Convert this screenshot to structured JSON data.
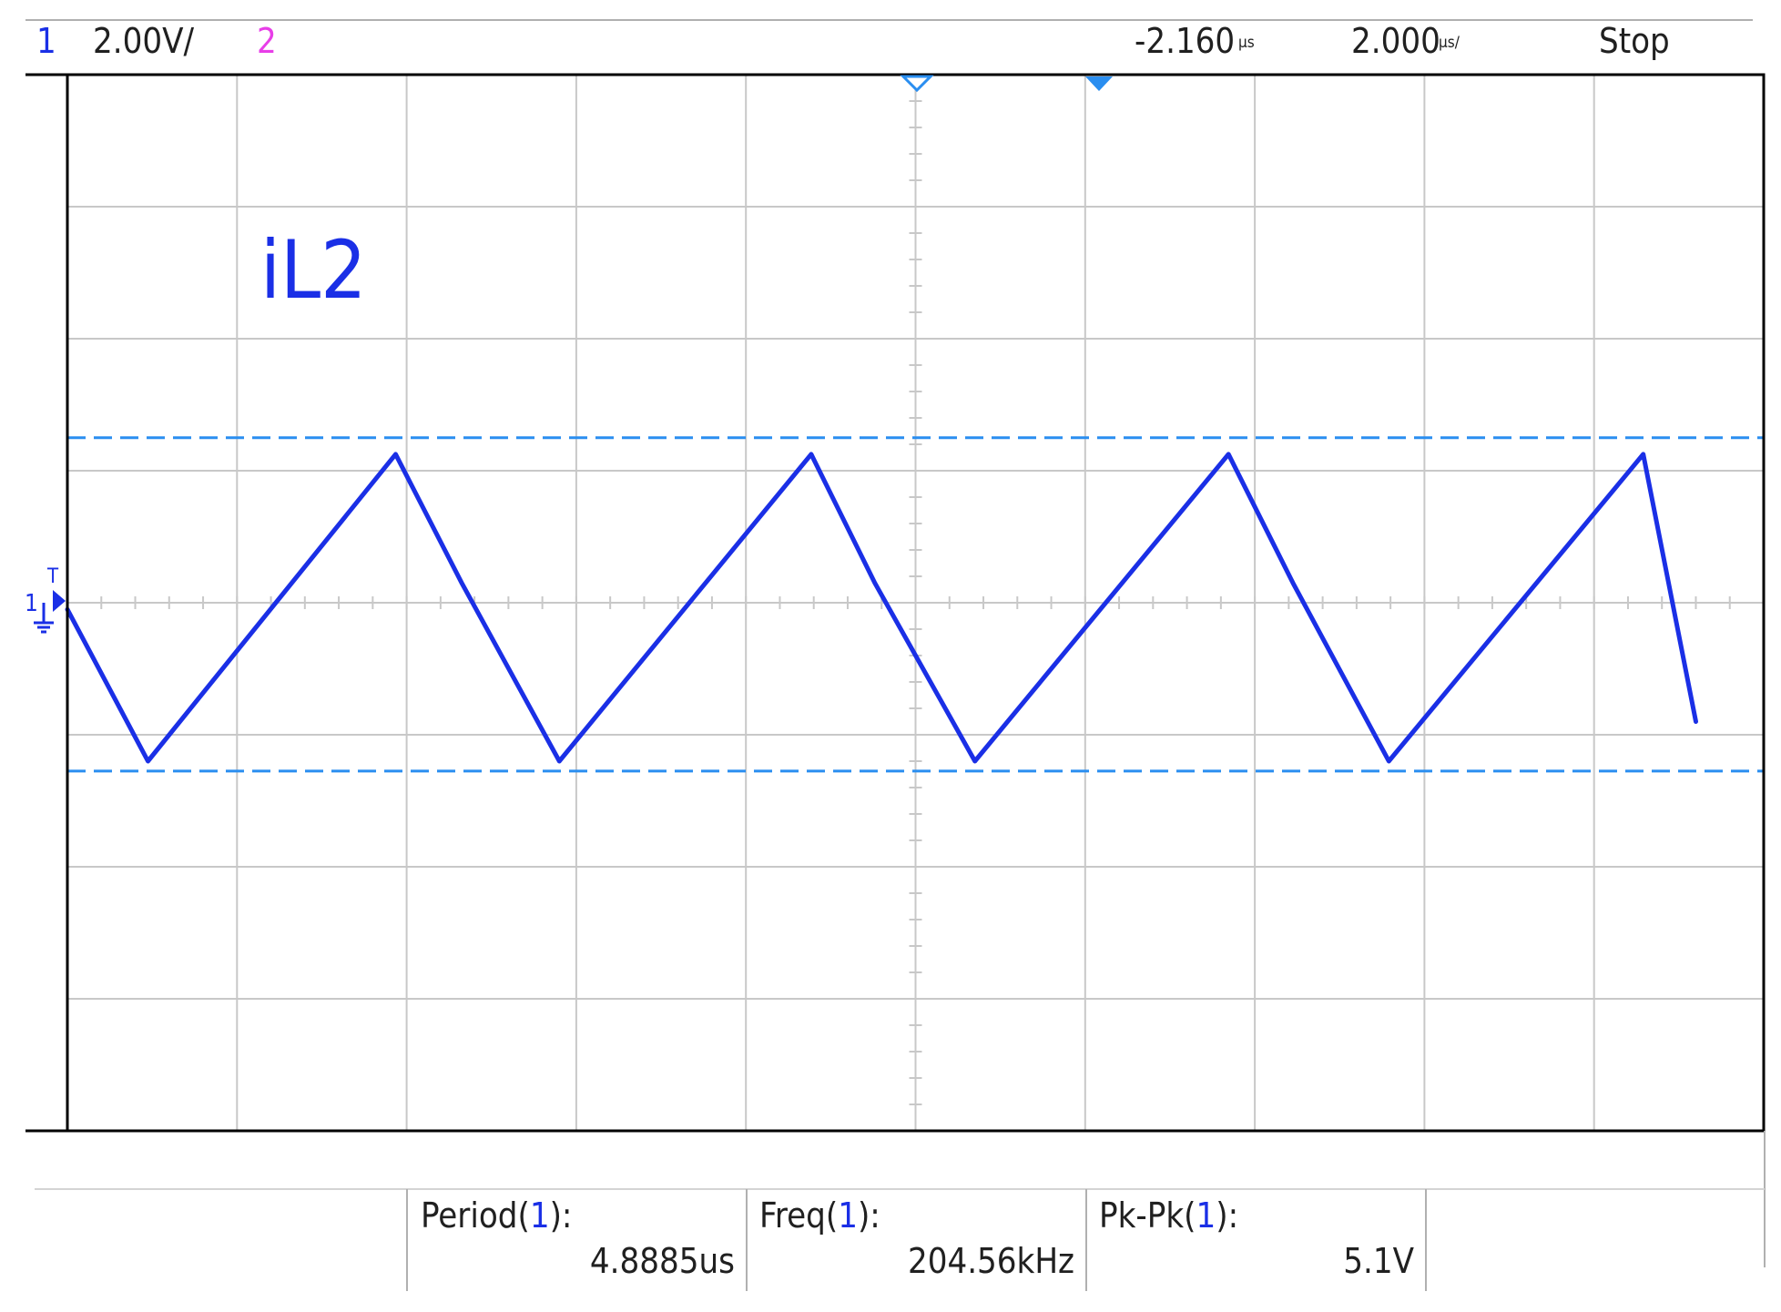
{
  "status_bar": {
    "channel1_number": "1",
    "channel1_scale": "2.00V/",
    "channel2_number": "2",
    "time_delay": "-2.160",
    "time_delay_unit": "µs",
    "time_scale": "2.000",
    "time_scale_unit": "µs/",
    "run_state": "Stop"
  },
  "waveform": {
    "label": "iL2",
    "channel_marker": "1",
    "trigger_marker": "T"
  },
  "measurements": [
    {
      "name": "Period",
      "channel": "1",
      "value": "4.8885us"
    },
    {
      "name": "Freq",
      "channel": "1",
      "value": "204.56kHz"
    },
    {
      "name": "Pk-Pk",
      "channel": "1",
      "value": "5.1V"
    }
  ],
  "colors": {
    "channel1": "#1a2fe6",
    "channel2": "#e83ee8",
    "cursor": "#2a8ef0",
    "grid": "#c8c8c8",
    "text": "#202020"
  },
  "chart_data": {
    "type": "line",
    "xlabel": "",
    "ylabel": "",
    "x_units": "µs",
    "y_units": "V",
    "xlim": [
      -12.16,
      7.84
    ],
    "ylim": [
      -8,
      8
    ],
    "grid": true,
    "series": [
      {
        "name": "iL2",
        "x": [
          -12.16,
          -11.21,
          -8.29,
          -7.51,
          -6.36,
          -3.39,
          -2.64,
          -1.46,
          1.53,
          2.29,
          3.42,
          6.42,
          7.04
        ],
        "y": [
          -0.1,
          -2.4,
          2.25,
          0.3,
          -2.4,
          2.25,
          0.3,
          -2.4,
          2.25,
          0.3,
          -2.4,
          2.25,
          -1.8
        ]
      }
    ],
    "cursors_y": [
      2.5,
      -2.55
    ],
    "trigger_time": 0,
    "ground_level": 0
  }
}
